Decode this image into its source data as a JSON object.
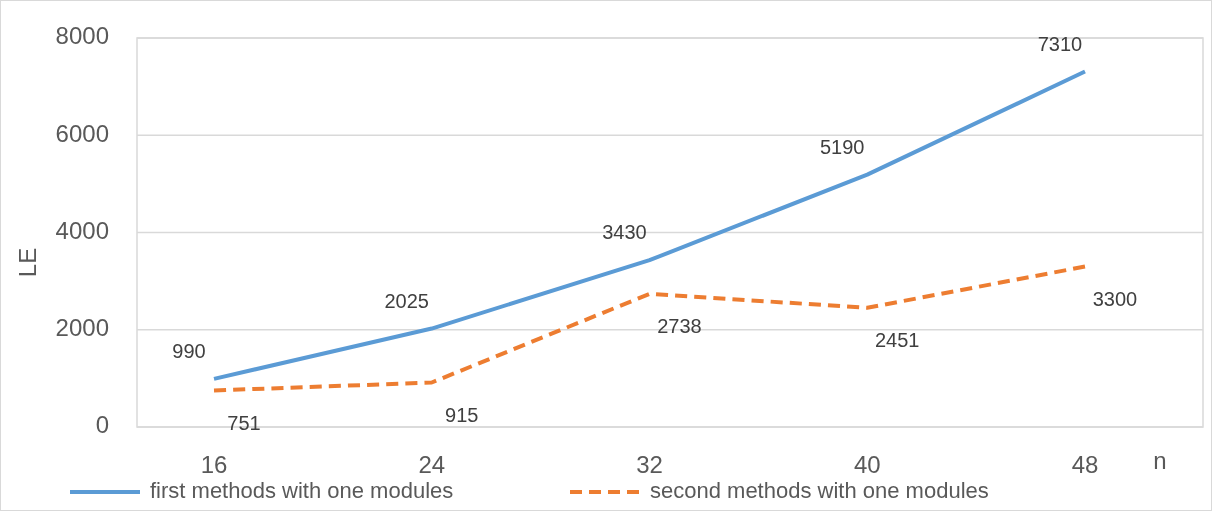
{
  "chart_data": {
    "type": "line",
    "xlabel": "n",
    "ylabel": "LE",
    "categories": [
      "16",
      "24",
      "32",
      "40",
      "48"
    ],
    "series": [
      {
        "name": "first methods with one modules",
        "color": "#5b9bd5",
        "values": [
          990,
          2025,
          3430,
          5190,
          7310
        ],
        "line_style": "solid"
      },
      {
        "name": "second methods with one modules",
        "color": "#ed7d31",
        "values": [
          751,
          915,
          2738,
          2451,
          3300
        ],
        "line_style": "dashed"
      }
    ],
    "ylim": [
      0,
      8000
    ],
    "yticks": [
      0,
      2000,
      4000,
      6000,
      8000
    ],
    "grid": "y",
    "legend": "bottom",
    "data_labels": true,
    "marker": "none"
  }
}
